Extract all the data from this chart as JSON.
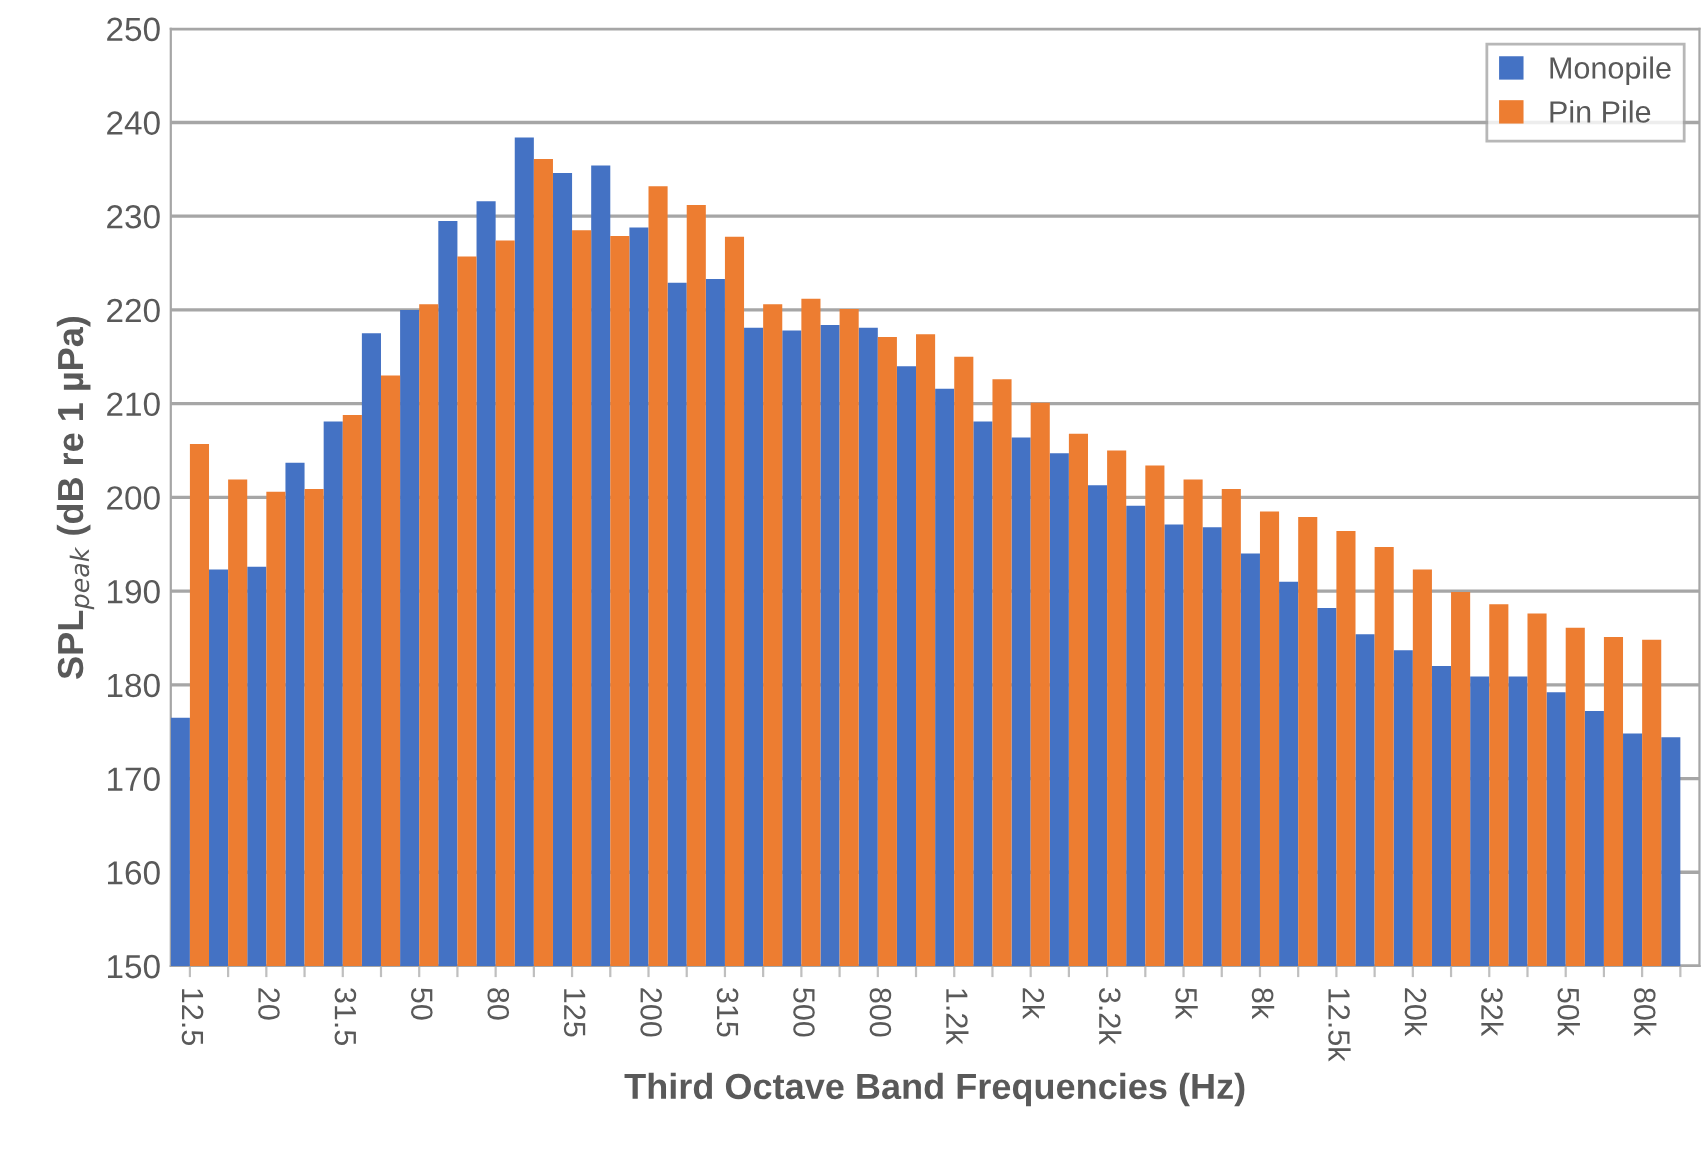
{
  "chart_data": {
    "type": "bar",
    "xlabel": "Third Octave Band Frequencies (Hz)",
    "ylabel": "SPL$_{peak}$ (dB re 1 µPa)",
    "categories": [
      "12.5",
      null,
      "20",
      null,
      "31.5",
      null,
      "50",
      null,
      "80",
      null,
      "125",
      null,
      "200",
      null,
      "315",
      null,
      "500",
      null,
      "800",
      null,
      "1.2k",
      null,
      "2k",
      null,
      "3.2k",
      null,
      "5k",
      null,
      "8k",
      null,
      "12.5k",
      null,
      "20k",
      null,
      "32k",
      null,
      "50k",
      null,
      "80k",
      null
    ],
    "series": [
      {
        "name": "Monopile",
        "color": "#4472c4",
        "values": [
          176.5,
          192.3,
          192.6,
          203.7,
          208.1,
          217.5,
          220.0,
          229.5,
          231.6,
          238.4,
          234.6,
          235.4,
          228.8,
          222.9,
          223.3,
          218.1,
          217.8,
          218.4,
          218.1,
          214.0,
          211.6,
          208.1,
          206.4,
          204.7,
          201.3,
          199.1,
          197.1,
          196.8,
          194.0,
          191.0,
          188.2,
          185.4,
          183.7,
          182.0,
          180.9,
          180.9,
          179.2,
          177.2,
          174.8,
          174.4
        ]
      },
      {
        "name": "Pin Pile",
        "color": "#ed7d31",
        "values": [
          205.7,
          201.9,
          200.6,
          200.9,
          208.8,
          213.0,
          220.6,
          225.7,
          227.4,
          236.1,
          228.5,
          227.9,
          233.2,
          231.2,
          227.8,
          220.6,
          221.2,
          220.1,
          217.1,
          217.4,
          215.0,
          212.6,
          210.1,
          206.8,
          205.0,
          203.4,
          201.9,
          200.9,
          198.5,
          197.9,
          196.4,
          194.7,
          192.3,
          189.9,
          188.6,
          187.6,
          186.1,
          185.1,
          184.8,
          null
        ]
      }
    ],
    "ylim": [
      150,
      250
    ],
    "yticks": [
      150,
      160,
      170,
      180,
      190,
      200,
      210,
      220,
      230,
      240,
      250
    ],
    "grid": "y",
    "legend": "top right"
  }
}
